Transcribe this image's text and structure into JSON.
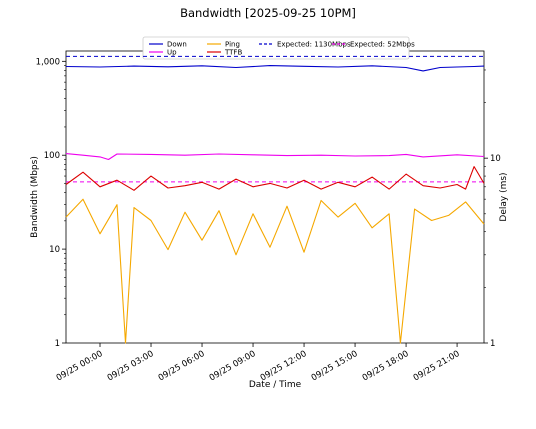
{
  "chart_data": {
    "type": "line",
    "title": "Bandwidth [2025-09-25 10PM]",
    "xlabel": "Date / Time",
    "ylabel": "Bandwidth (Mbps)",
    "y2label": "Delay (ms)",
    "yscale": "log",
    "y2scale": "log",
    "ylim": [
      1,
      2000
    ],
    "y2lim": [
      1,
      30
    ],
    "xlim": [
      "09/24 22:00",
      "09/25 22:35"
    ],
    "grid": false,
    "legend_position": "top-center",
    "x_tick_labels": [
      "09/25 00:00",
      "09/25 03:00",
      "09/25 06:00",
      "09/25 09:00",
      "09/25 12:00",
      "09/25 15:00",
      "09/25 18:00",
      "09/25 21:00"
    ],
    "y_tick_labels": [
      "1",
      "10",
      "100",
      "1,000"
    ],
    "y2_tick_labels": [
      "1",
      "10"
    ],
    "legend": [
      {
        "label": "Down",
        "color": "#0000cc",
        "dash": "solid"
      },
      {
        "label": "Up",
        "color": "#ee00ee",
        "dash": "solid"
      },
      {
        "label": "Ping",
        "color": "#f5a800",
        "dash": "solid"
      },
      {
        "label": "TTFB",
        "color": "#dd0000",
        "dash": "solid"
      },
      {
        "label": "Expected: 1130Mbps",
        "color": "#0000cc",
        "dash": "dashed"
      },
      {
        "label": "Expected: 52Mbps",
        "color": "#ee00ee",
        "dash": "dashed"
      }
    ],
    "reference_lines": [
      {
        "axis": "left",
        "value": 1130,
        "color": "#0000cc"
      },
      {
        "axis": "left",
        "value": 52,
        "color": "#ee00ee"
      }
    ],
    "series": [
      {
        "name": "Down",
        "axis": "left",
        "color": "#0000cc",
        "x": [
          "09/24 22:00",
          "09/25 00:00",
          "09/25 02:00",
          "09/25 04:00",
          "09/25 06:00",
          "09/25 08:00",
          "09/25 10:00",
          "09/25 12:00",
          "09/25 14:00",
          "09/25 16:00",
          "09/25 18:00",
          "09/25 19:00",
          "09/25 20:00",
          "09/25 22:00",
          "09/25 22:35"
        ],
        "values": [
          880,
          870,
          890,
          875,
          895,
          860,
          900,
          885,
          870,
          895,
          860,
          790,
          860,
          880,
          890
        ]
      },
      {
        "name": "Up",
        "axis": "left",
        "color": "#ee00ee",
        "x": [
          "09/24 22:00",
          "09/24 23:00",
          "09/25 00:00",
          "09/25 00:30",
          "09/25 01:00",
          "09/25 03:00",
          "09/25 05:00",
          "09/25 07:00",
          "09/25 09:00",
          "09/25 11:00",
          "09/25 13:00",
          "09/25 15:00",
          "09/25 17:00",
          "09/25 18:00",
          "09/25 19:00",
          "09/25 21:00",
          "09/25 22:35"
        ],
        "values": [
          104,
          100,
          96,
          90,
          103,
          102,
          100,
          103,
          101,
          99,
          100,
          98,
          99,
          102,
          96,
          101,
          97
        ]
      },
      {
        "name": "TTFB",
        "axis": "right",
        "color": "#dd0000",
        "x": [
          "09/24 22:00",
          "09/24 23:00",
          "09/25 00:00",
          "09/25 01:00",
          "09/25 02:00",
          "09/25 03:00",
          "09/25 04:00",
          "09/25 05:00",
          "09/25 06:00",
          "09/25 07:00",
          "09/25 08:00",
          "09/25 09:00",
          "09/25 10:00",
          "09/25 11:00",
          "09/25 12:00",
          "09/25 13:00",
          "09/25 14:00",
          "09/25 15:00",
          "09/25 16:00",
          "09/25 17:00",
          "09/25 18:00",
          "09/25 19:00",
          "09/25 20:00",
          "09/25 21:00",
          "09/25 21:30",
          "09/25 22:00",
          "09/25 22:35"
        ],
        "values": [
          7.2,
          8.4,
          7.0,
          7.6,
          6.7,
          8.0,
          6.9,
          7.1,
          7.4,
          6.8,
          7.7,
          7.0,
          7.3,
          6.9,
          7.6,
          6.8,
          7.4,
          7.0,
          7.9,
          6.8,
          8.2,
          7.1,
          6.9,
          7.2,
          6.8,
          9.0,
          7.3
        ]
      },
      {
        "name": "Ping",
        "axis": "right",
        "color": "#f5a800",
        "x": [
          "09/24 22:00",
          "09/24 23:00",
          "09/25 00:00",
          "09/25 01:00",
          "09/25 01:30",
          "09/25 02:00",
          "09/25 03:00",
          "09/25 04:00",
          "09/25 05:00",
          "09/25 06:00",
          "09/25 07:00",
          "09/25 08:00",
          "09/25 09:00",
          "09/25 10:00",
          "09/25 11:00",
          "09/25 12:00",
          "09/25 13:00",
          "09/25 14:00",
          "09/25 15:00",
          "09/25 16:00",
          "09/25 17:00",
          "09/25 17:40",
          "09/25 18:30",
          "09/25 19:30",
          "09/25 20:30",
          "09/25 21:30",
          "09/25 22:35"
        ],
        "values": [
          4.8,
          6.0,
          3.9,
          5.6,
          1.0,
          5.4,
          4.6,
          3.2,
          5.1,
          3.6,
          5.2,
          3.0,
          5.0,
          3.3,
          5.5,
          3.1,
          5.9,
          4.8,
          5.7,
          4.2,
          5.0,
          1.0,
          5.3,
          4.6,
          4.9,
          5.8,
          4.4
        ]
      }
    ]
  }
}
